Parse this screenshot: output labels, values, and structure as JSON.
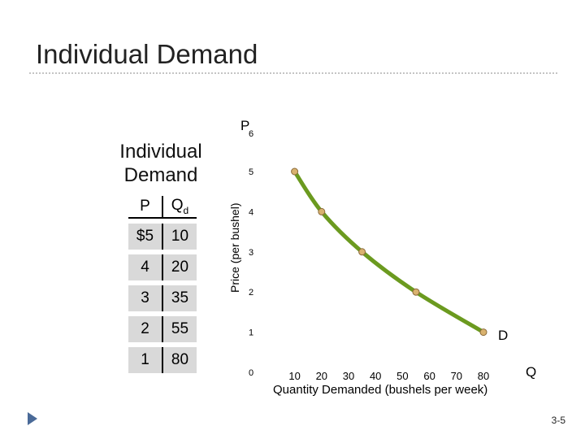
{
  "slide": {
    "title": "Individual Demand",
    "page": "3-5"
  },
  "table": {
    "title_line1": "Individual",
    "title_line2": "Demand",
    "header_p": "P",
    "header_q": "Q",
    "header_q_sub": "d",
    "rows": [
      {
        "p": "$5",
        "q": "10"
      },
      {
        "p": "4",
        "q": "20"
      },
      {
        "p": "3",
        "q": "35"
      },
      {
        "p": "2",
        "q": "55"
      },
      {
        "p": "1",
        "q": "80"
      }
    ]
  },
  "chart_data": {
    "type": "line",
    "title": "",
    "x_axis_letter": "Q",
    "y_axis_letter": "P",
    "xlabel": "Quantity Demanded (bushels per week)",
    "ylabel": "Price (per bushel)",
    "x_ticks": [
      10,
      20,
      30,
      40,
      50,
      60,
      70,
      80
    ],
    "y_ticks": [
      0,
      1,
      2,
      3,
      4,
      5,
      6
    ],
    "xlim": [
      0,
      80
    ],
    "ylim": [
      0,
      6
    ],
    "grid": false,
    "points": [
      {
        "x": 10,
        "y": 5
      },
      {
        "x": 20,
        "y": 4
      },
      {
        "x": 35,
        "y": 3
      },
      {
        "x": 55,
        "y": 2
      },
      {
        "x": 80,
        "y": 1
      }
    ],
    "curve_label": "D",
    "curve_color": "#6b9a1f",
    "marker_color": "#d9b26f"
  }
}
